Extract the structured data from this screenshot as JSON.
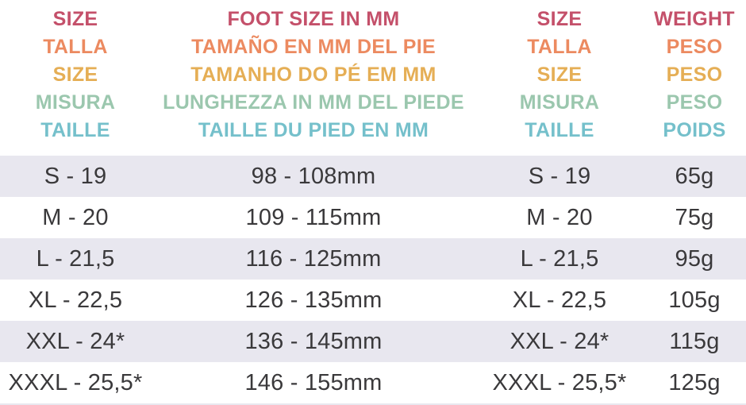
{
  "colors": {
    "row_stripe": "#e8e7ef",
    "data_text": "#3a393b",
    "background": "#ffffff",
    "header_english": "#c4506a",
    "header_spanish": "#ec8a60",
    "header_portuguese": "#e5ae55",
    "header_italian": "#9bc7ae",
    "header_french": "#75c0cb"
  },
  "header": {
    "rows": [
      {
        "lang": "english",
        "size": "SIZE",
        "foot": "FOOT SIZE IN MM",
        "size2": "SIZE",
        "weight": "WEIGHT",
        "color": "#c4506a"
      },
      {
        "lang": "spanish",
        "size": "TALLA",
        "foot": "TAMAÑO EN MM DEL PIE",
        "size2": "TALLA",
        "weight": "PESO",
        "color": "#ec8a60"
      },
      {
        "lang": "portuguese",
        "size": "SIZE",
        "foot": "TAMANHO DO PÉ EM MM",
        "size2": "SIZE",
        "weight": "PESO",
        "color": "#e5ae55"
      },
      {
        "lang": "italian",
        "size": "MISURA",
        "foot": "LUNGHEZZA IN MM DEL PIEDE",
        "size2": "MISURA",
        "weight": "PESO",
        "color": "#9bc7ae"
      },
      {
        "lang": "french",
        "size": "TAILLE",
        "foot": "TAILLE DU PIED EN MM",
        "size2": "TAILLE",
        "weight": "POIDS",
        "color": "#75c0cb"
      }
    ]
  },
  "rows": [
    {
      "size": "S - 19",
      "foot": "98 - 108mm",
      "size2": "S - 19",
      "weight": "65g"
    },
    {
      "size": "M - 20",
      "foot": "109 - 115mm",
      "size2": "M - 20",
      "weight": "75g"
    },
    {
      "size": "L - 21,5",
      "foot": "116 - 125mm",
      "size2": "L - 21,5",
      "weight": "95g"
    },
    {
      "size": "XL - 22,5",
      "foot": "126 - 135mm",
      "size2": "XL - 22,5",
      "weight": "105g"
    },
    {
      "size": "XXL - 24*",
      "foot": "136 - 145mm",
      "size2": "XXL - 24*",
      "weight": "115g"
    },
    {
      "size": "XXXL - 25,5*",
      "foot": "146 - 155mm",
      "size2": "XXXL - 25,5*",
      "weight": "125g"
    }
  ]
}
